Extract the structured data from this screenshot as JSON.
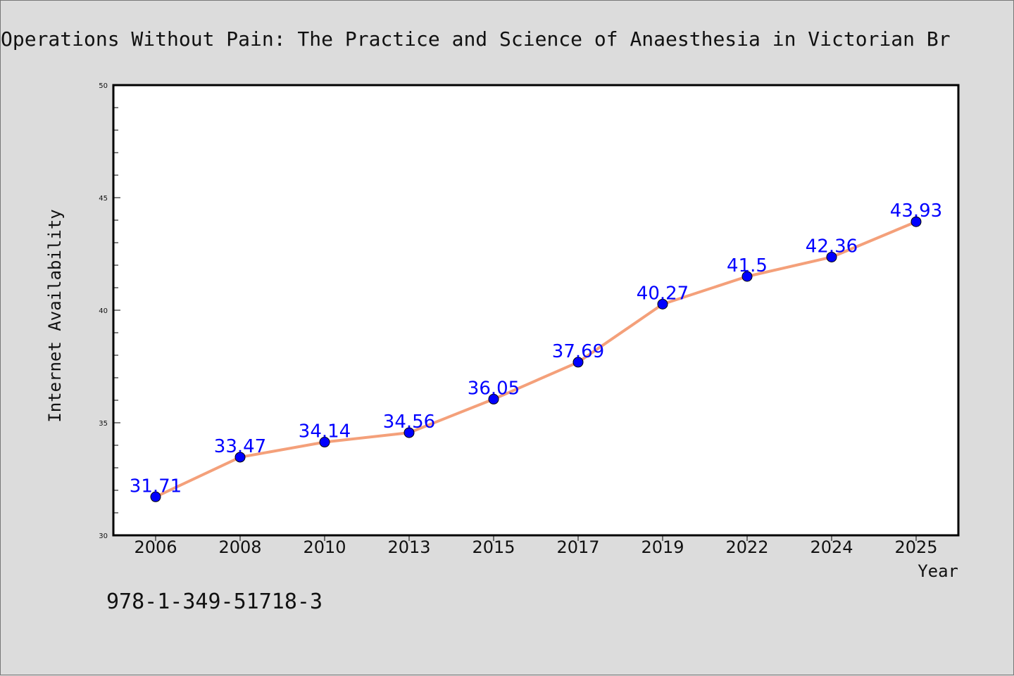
{
  "chart_data": {
    "type": "line",
    "title": "Operations Without Pain: The Practice and Science of Anaesthesia in Victorian Br",
    "xlabel": "Year",
    "ylabel": "Internet Availability",
    "categories": [
      "2006",
      "2008",
      "2010",
      "2013",
      "2015",
      "2017",
      "2019",
      "2022",
      "2024",
      "2025"
    ],
    "series": [
      {
        "values": [
          31.71,
          33.47,
          34.14,
          34.56,
          36.05,
          37.69,
          40.27,
          41.5,
          42.36,
          43.93
        ],
        "labels": [
          "31.71",
          "33.47",
          "34.14",
          "34.56",
          "36.05",
          "37.69",
          "40.27",
          "41.5",
          "42.36",
          "43.93"
        ]
      }
    ],
    "ylim": [
      30,
      50
    ],
    "yticks": [
      "30",
      "35",
      "40",
      "45",
      "50"
    ],
    "grid": false,
    "legend": "none",
    "colors": {
      "line": "#f4a07a",
      "marker": "#0000ff",
      "label": "#0000ff",
      "background": "#dcdcdc",
      "plot_background": "#ffffff"
    }
  },
  "footer": {
    "isbn": "978-1-349-51718-3"
  }
}
